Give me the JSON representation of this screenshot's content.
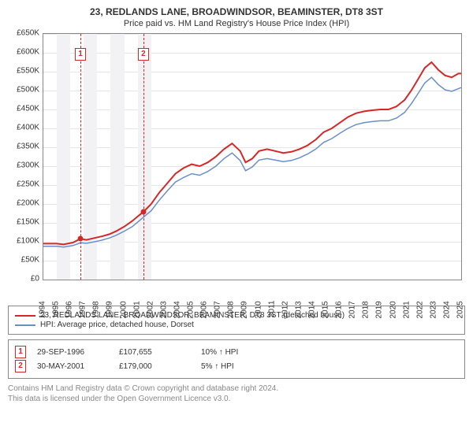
{
  "header": {
    "title": "23, REDLANDS LANE, BROADWINDSOR, BEAMINSTER, DT8 3ST",
    "subtitle": "Price paid vs. HM Land Registry's House Price Index (HPI)"
  },
  "chart": {
    "type": "line",
    "background_color": "#ffffff",
    "grid_color": "#e6e6e6",
    "axis_color": "#888888",
    "plot_border_color": "#888888",
    "alt_band_color": "#f2f2f4",
    "y_axis": {
      "min": 0,
      "max": 650000,
      "step": 50000,
      "ticks": [
        {
          "v": 0,
          "l": "£0"
        },
        {
          "v": 50000,
          "l": "£50K"
        },
        {
          "v": 100000,
          "l": "£100K"
        },
        {
          "v": 150000,
          "l": "£150K"
        },
        {
          "v": 200000,
          "l": "£200K"
        },
        {
          "v": 250000,
          "l": "£250K"
        },
        {
          "v": 300000,
          "l": "£300K"
        },
        {
          "v": 350000,
          "l": "£350K"
        },
        {
          "v": 400000,
          "l": "£400K"
        },
        {
          "v": 450000,
          "l": "£450K"
        },
        {
          "v": 500000,
          "l": "£500K"
        },
        {
          "v": 550000,
          "l": "£550K"
        },
        {
          "v": 600000,
          "l": "£600K"
        },
        {
          "v": 650000,
          "l": "£650K"
        }
      ]
    },
    "x_axis": {
      "min": 1994,
      "max": 2025,
      "ticks": [
        1994,
        1995,
        1996,
        1997,
        1998,
        1999,
        2000,
        2001,
        2002,
        2003,
        2004,
        2005,
        2006,
        2007,
        2008,
        2009,
        2010,
        2011,
        2012,
        2013,
        2014,
        2015,
        2016,
        2017,
        2018,
        2019,
        2020,
        2021,
        2022,
        2023,
        2024,
        2025
      ]
    },
    "alt_bands": [
      [
        1995,
        1996
      ],
      [
        1997,
        1998
      ],
      [
        1999,
        2000
      ],
      [
        2001,
        2002
      ]
    ],
    "series": [
      {
        "id": "property",
        "color": "#d62728",
        "width": 2,
        "points": [
          [
            1994.0,
            95000
          ],
          [
            1995.0,
            95000
          ],
          [
            1995.5,
            93000
          ],
          [
            1996.2,
            98000
          ],
          [
            1996.75,
            108000
          ],
          [
            1997.2,
            105000
          ],
          [
            1997.8,
            110000
          ],
          [
            1998.3,
            114000
          ],
          [
            1998.9,
            120000
          ],
          [
            1999.4,
            128000
          ],
          [
            2000.0,
            140000
          ],
          [
            2000.6,
            155000
          ],
          [
            2001.1,
            170000
          ],
          [
            2001.42,
            179000
          ],
          [
            2002.0,
            200000
          ],
          [
            2002.6,
            230000
          ],
          [
            2003.2,
            255000
          ],
          [
            2003.8,
            280000
          ],
          [
            2004.4,
            295000
          ],
          [
            2005.0,
            305000
          ],
          [
            2005.6,
            300000
          ],
          [
            2006.2,
            310000
          ],
          [
            2006.8,
            325000
          ],
          [
            2007.4,
            345000
          ],
          [
            2008.0,
            360000
          ],
          [
            2008.6,
            340000
          ],
          [
            2009.0,
            310000
          ],
          [
            2009.5,
            320000
          ],
          [
            2010.0,
            340000
          ],
          [
            2010.6,
            345000
          ],
          [
            2011.2,
            340000
          ],
          [
            2011.8,
            335000
          ],
          [
            2012.4,
            338000
          ],
          [
            2013.0,
            345000
          ],
          [
            2013.6,
            355000
          ],
          [
            2014.2,
            370000
          ],
          [
            2014.8,
            390000
          ],
          [
            2015.4,
            400000
          ],
          [
            2016.0,
            415000
          ],
          [
            2016.6,
            430000
          ],
          [
            2017.2,
            440000
          ],
          [
            2017.8,
            445000
          ],
          [
            2018.4,
            448000
          ],
          [
            2019.0,
            450000
          ],
          [
            2019.6,
            450000
          ],
          [
            2020.2,
            458000
          ],
          [
            2020.8,
            475000
          ],
          [
            2021.3,
            500000
          ],
          [
            2021.8,
            530000
          ],
          [
            2022.3,
            560000
          ],
          [
            2022.8,
            575000
          ],
          [
            2023.3,
            555000
          ],
          [
            2023.8,
            540000
          ],
          [
            2024.3,
            535000
          ],
          [
            2024.8,
            545000
          ],
          [
            2025.0,
            545000
          ]
        ]
      },
      {
        "id": "hpi",
        "color": "#6a8fc8",
        "width": 1.5,
        "points": [
          [
            1994.0,
            88000
          ],
          [
            1995.0,
            88000
          ],
          [
            1995.5,
            86000
          ],
          [
            1996.2,
            90000
          ],
          [
            1996.75,
            97000
          ],
          [
            1997.2,
            96000
          ],
          [
            1997.8,
            100000
          ],
          [
            1998.3,
            104000
          ],
          [
            1998.9,
            110000
          ],
          [
            1999.4,
            117000
          ],
          [
            2000.0,
            128000
          ],
          [
            2000.6,
            140000
          ],
          [
            2001.1,
            155000
          ],
          [
            2001.42,
            165000
          ],
          [
            2002.0,
            182000
          ],
          [
            2002.6,
            210000
          ],
          [
            2003.2,
            235000
          ],
          [
            2003.8,
            258000
          ],
          [
            2004.4,
            270000
          ],
          [
            2005.0,
            280000
          ],
          [
            2005.6,
            276000
          ],
          [
            2006.2,
            286000
          ],
          [
            2006.8,
            300000
          ],
          [
            2007.4,
            320000
          ],
          [
            2008.0,
            335000
          ],
          [
            2008.6,
            315000
          ],
          [
            2009.0,
            288000
          ],
          [
            2009.5,
            298000
          ],
          [
            2010.0,
            316000
          ],
          [
            2010.6,
            320000
          ],
          [
            2011.2,
            316000
          ],
          [
            2011.8,
            312000
          ],
          [
            2012.4,
            315000
          ],
          [
            2013.0,
            322000
          ],
          [
            2013.6,
            332000
          ],
          [
            2014.2,
            345000
          ],
          [
            2014.8,
            363000
          ],
          [
            2015.4,
            373000
          ],
          [
            2016.0,
            387000
          ],
          [
            2016.6,
            400000
          ],
          [
            2017.2,
            410000
          ],
          [
            2017.8,
            415000
          ],
          [
            2018.4,
            418000
          ],
          [
            2019.0,
            420000
          ],
          [
            2019.6,
            420000
          ],
          [
            2020.2,
            427000
          ],
          [
            2020.8,
            442000
          ],
          [
            2021.3,
            465000
          ],
          [
            2021.8,
            492000
          ],
          [
            2022.3,
            520000
          ],
          [
            2022.8,
            535000
          ],
          [
            2023.3,
            516000
          ],
          [
            2023.8,
            502000
          ],
          [
            2024.3,
            498000
          ],
          [
            2024.8,
            505000
          ],
          [
            2025.0,
            508000
          ]
        ]
      }
    ],
    "sale_markers": [
      {
        "n": "1",
        "x": 1996.75,
        "y": 107655,
        "color": "#d62728"
      },
      {
        "n": "2",
        "x": 2001.42,
        "y": 179000,
        "color": "#d62728"
      }
    ],
    "marker_box_y_offset": 18
  },
  "legend": {
    "items": [
      {
        "color": "#d62728",
        "label": "23, REDLANDS LANE, BROADWINDSOR, BEAMINSTER, DT8 3ST (detached house)"
      },
      {
        "color": "#6a8fc8",
        "label": "HPI: Average price, detached house, Dorset"
      }
    ]
  },
  "sales": {
    "rows": [
      {
        "n": "1",
        "color": "#d62728",
        "date": "29-SEP-1996",
        "price": "£107,655",
        "pct": "10%",
        "arrow": "↑",
        "note": "HPI"
      },
      {
        "n": "2",
        "color": "#d62728",
        "date": "30-MAY-2001",
        "price": "£179,000",
        "pct": "5%",
        "arrow": "↑",
        "note": "HPI"
      }
    ]
  },
  "footnote": {
    "line1": "Contains HM Land Registry data © Crown copyright and database right 2024.",
    "line2": "This data is licensed under the Open Government Licence v3.0."
  }
}
